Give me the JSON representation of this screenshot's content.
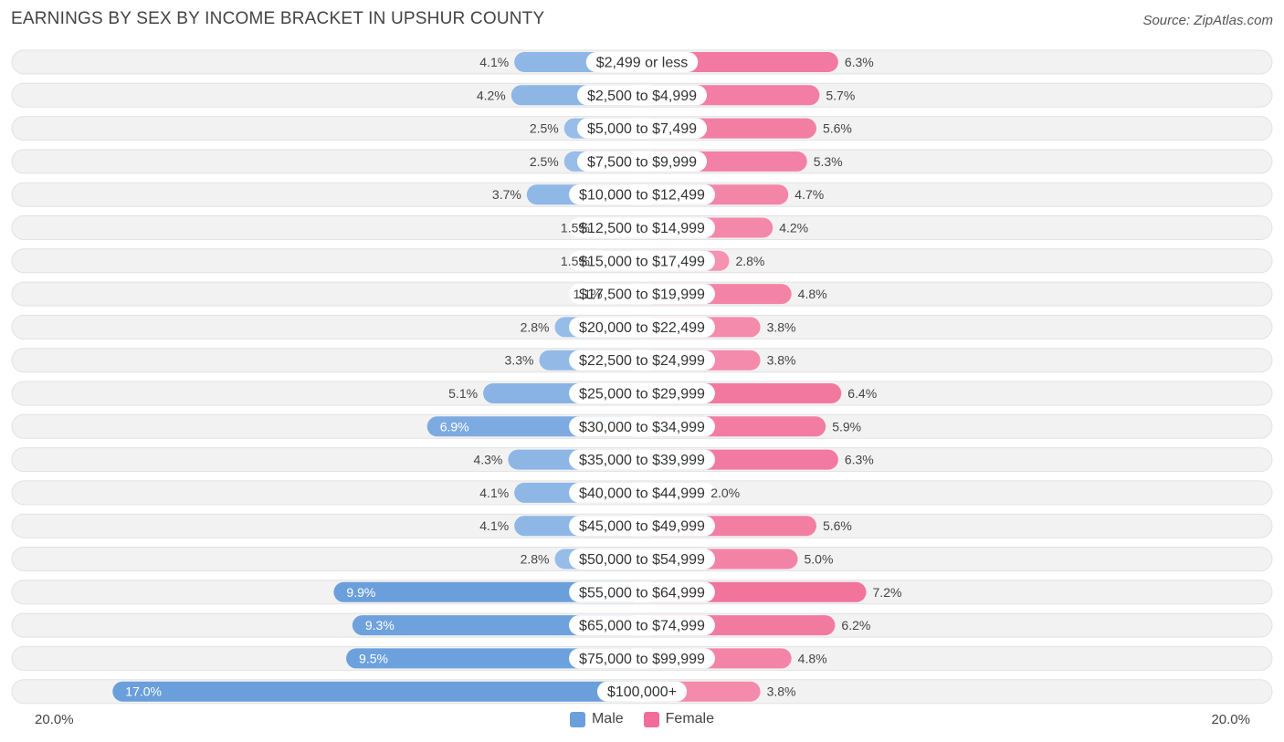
{
  "title": "EARNINGS BY SEX BY INCOME BRACKET IN UPSHUR COUNTY",
  "source": "Source: ZipAtlas.com",
  "colors": {
    "male": "#6a9fdc",
    "female": "#f16d98",
    "male_light": "#a7c7ec",
    "female_light": "#f7a6c0"
  },
  "chart_data": {
    "type": "bar",
    "orientation": "horizontal-diverging",
    "title": "EARNINGS BY SEX BY INCOME BRACKET IN UPSHUR COUNTY",
    "categories": [
      "$2,499 or less",
      "$2,500 to $4,999",
      "$5,000 to $7,499",
      "$7,500 to $9,999",
      "$10,000 to $12,499",
      "$12,500 to $14,999",
      "$15,000 to $17,499",
      "$17,500 to $19,999",
      "$20,000 to $22,499",
      "$22,500 to $24,999",
      "$25,000 to $29,999",
      "$30,000 to $34,999",
      "$35,000 to $39,999",
      "$40,000 to $44,999",
      "$45,000 to $49,999",
      "$50,000 to $54,999",
      "$55,000 to $64,999",
      "$65,000 to $74,999",
      "$75,000 to $99,999",
      "$100,000+"
    ],
    "series": [
      {
        "name": "Male",
        "values": [
          4.1,
          4.2,
          2.5,
          2.5,
          3.7,
          1.5,
          1.5,
          1.1,
          2.8,
          3.3,
          5.1,
          6.9,
          4.3,
          4.1,
          4.1,
          2.8,
          9.9,
          9.3,
          9.5,
          17.0
        ],
        "labels": [
          "4.1%",
          "4.2%",
          "2.5%",
          "2.5%",
          "3.7%",
          "1.5%",
          "1.5%",
          "1.1%",
          "2.8%",
          "3.3%",
          "5.1%",
          "6.9%",
          "4.3%",
          "4.1%",
          "4.1%",
          "2.8%",
          "9.9%",
          "9.3%",
          "9.5%",
          "17.0%"
        ]
      },
      {
        "name": "Female",
        "values": [
          6.3,
          5.7,
          5.6,
          5.3,
          4.7,
          4.2,
          2.8,
          4.8,
          3.8,
          3.8,
          6.4,
          5.9,
          6.3,
          2.0,
          5.6,
          5.0,
          7.2,
          6.2,
          4.8,
          3.8
        ],
        "labels": [
          "6.3%",
          "5.7%",
          "5.6%",
          "5.3%",
          "4.7%",
          "4.2%",
          "2.8%",
          "4.8%",
          "3.8%",
          "3.8%",
          "6.4%",
          "5.9%",
          "6.3%",
          "2.0%",
          "5.6%",
          "5.0%",
          "7.2%",
          "6.2%",
          "4.8%",
          "3.8%"
        ]
      }
    ],
    "xlim": [
      -20,
      20
    ],
    "axis_labels": {
      "left": "20.0%",
      "right": "20.0%"
    },
    "legend": [
      "Male",
      "Female"
    ],
    "legend_position": "bottom-center"
  }
}
